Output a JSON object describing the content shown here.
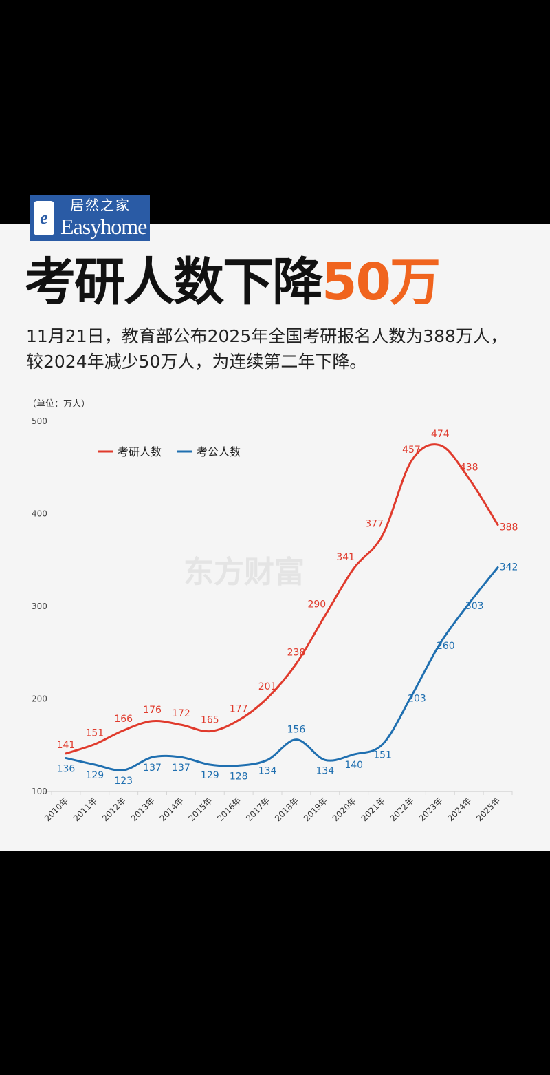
{
  "logo": {
    "mark": "e",
    "text_cn": "居然之家",
    "text_en": "Easyhome"
  },
  "headline": {
    "main": "考研人数下降",
    "highlight": "50万"
  },
  "subtitle": [
    "11月21日，教育部公布2025年全国考研报名人数为388万人，",
    "较2024年减少50万人，为连续第二年下降。"
  ],
  "watermark": "东方财富",
  "colors": {
    "accent": "#f0641e",
    "red": "#e03a2c",
    "blue": "#1f6fb0"
  },
  "chart_data": {
    "type": "line",
    "unit_label": "（单位：万人）",
    "categories": [
      "2010年",
      "2011年",
      "2012年",
      "2013年",
      "2014年",
      "2015年",
      "2016年",
      "2017年",
      "2018年",
      "2019年",
      "2020年",
      "2021年",
      "2022年",
      "2023年",
      "2024年",
      "2025年"
    ],
    "yticks": [
      100,
      200,
      300,
      400,
      500
    ],
    "ylim": [
      100,
      500
    ],
    "grid": false,
    "legend_position": "top-left",
    "series": [
      {
        "name": "考研人数",
        "color": "#e03a2c",
        "values": [
          141,
          151,
          166,
          176,
          172,
          165,
          177,
          201,
          238,
          290,
          341,
          377,
          457,
          474,
          438,
          388
        ]
      },
      {
        "name": "考公人数",
        "color": "#1f6fb0",
        "values": [
          136,
          129,
          123,
          137,
          137,
          129,
          128,
          134,
          156,
          134,
          140,
          151,
          203,
          260,
          303,
          342
        ]
      }
    ]
  }
}
